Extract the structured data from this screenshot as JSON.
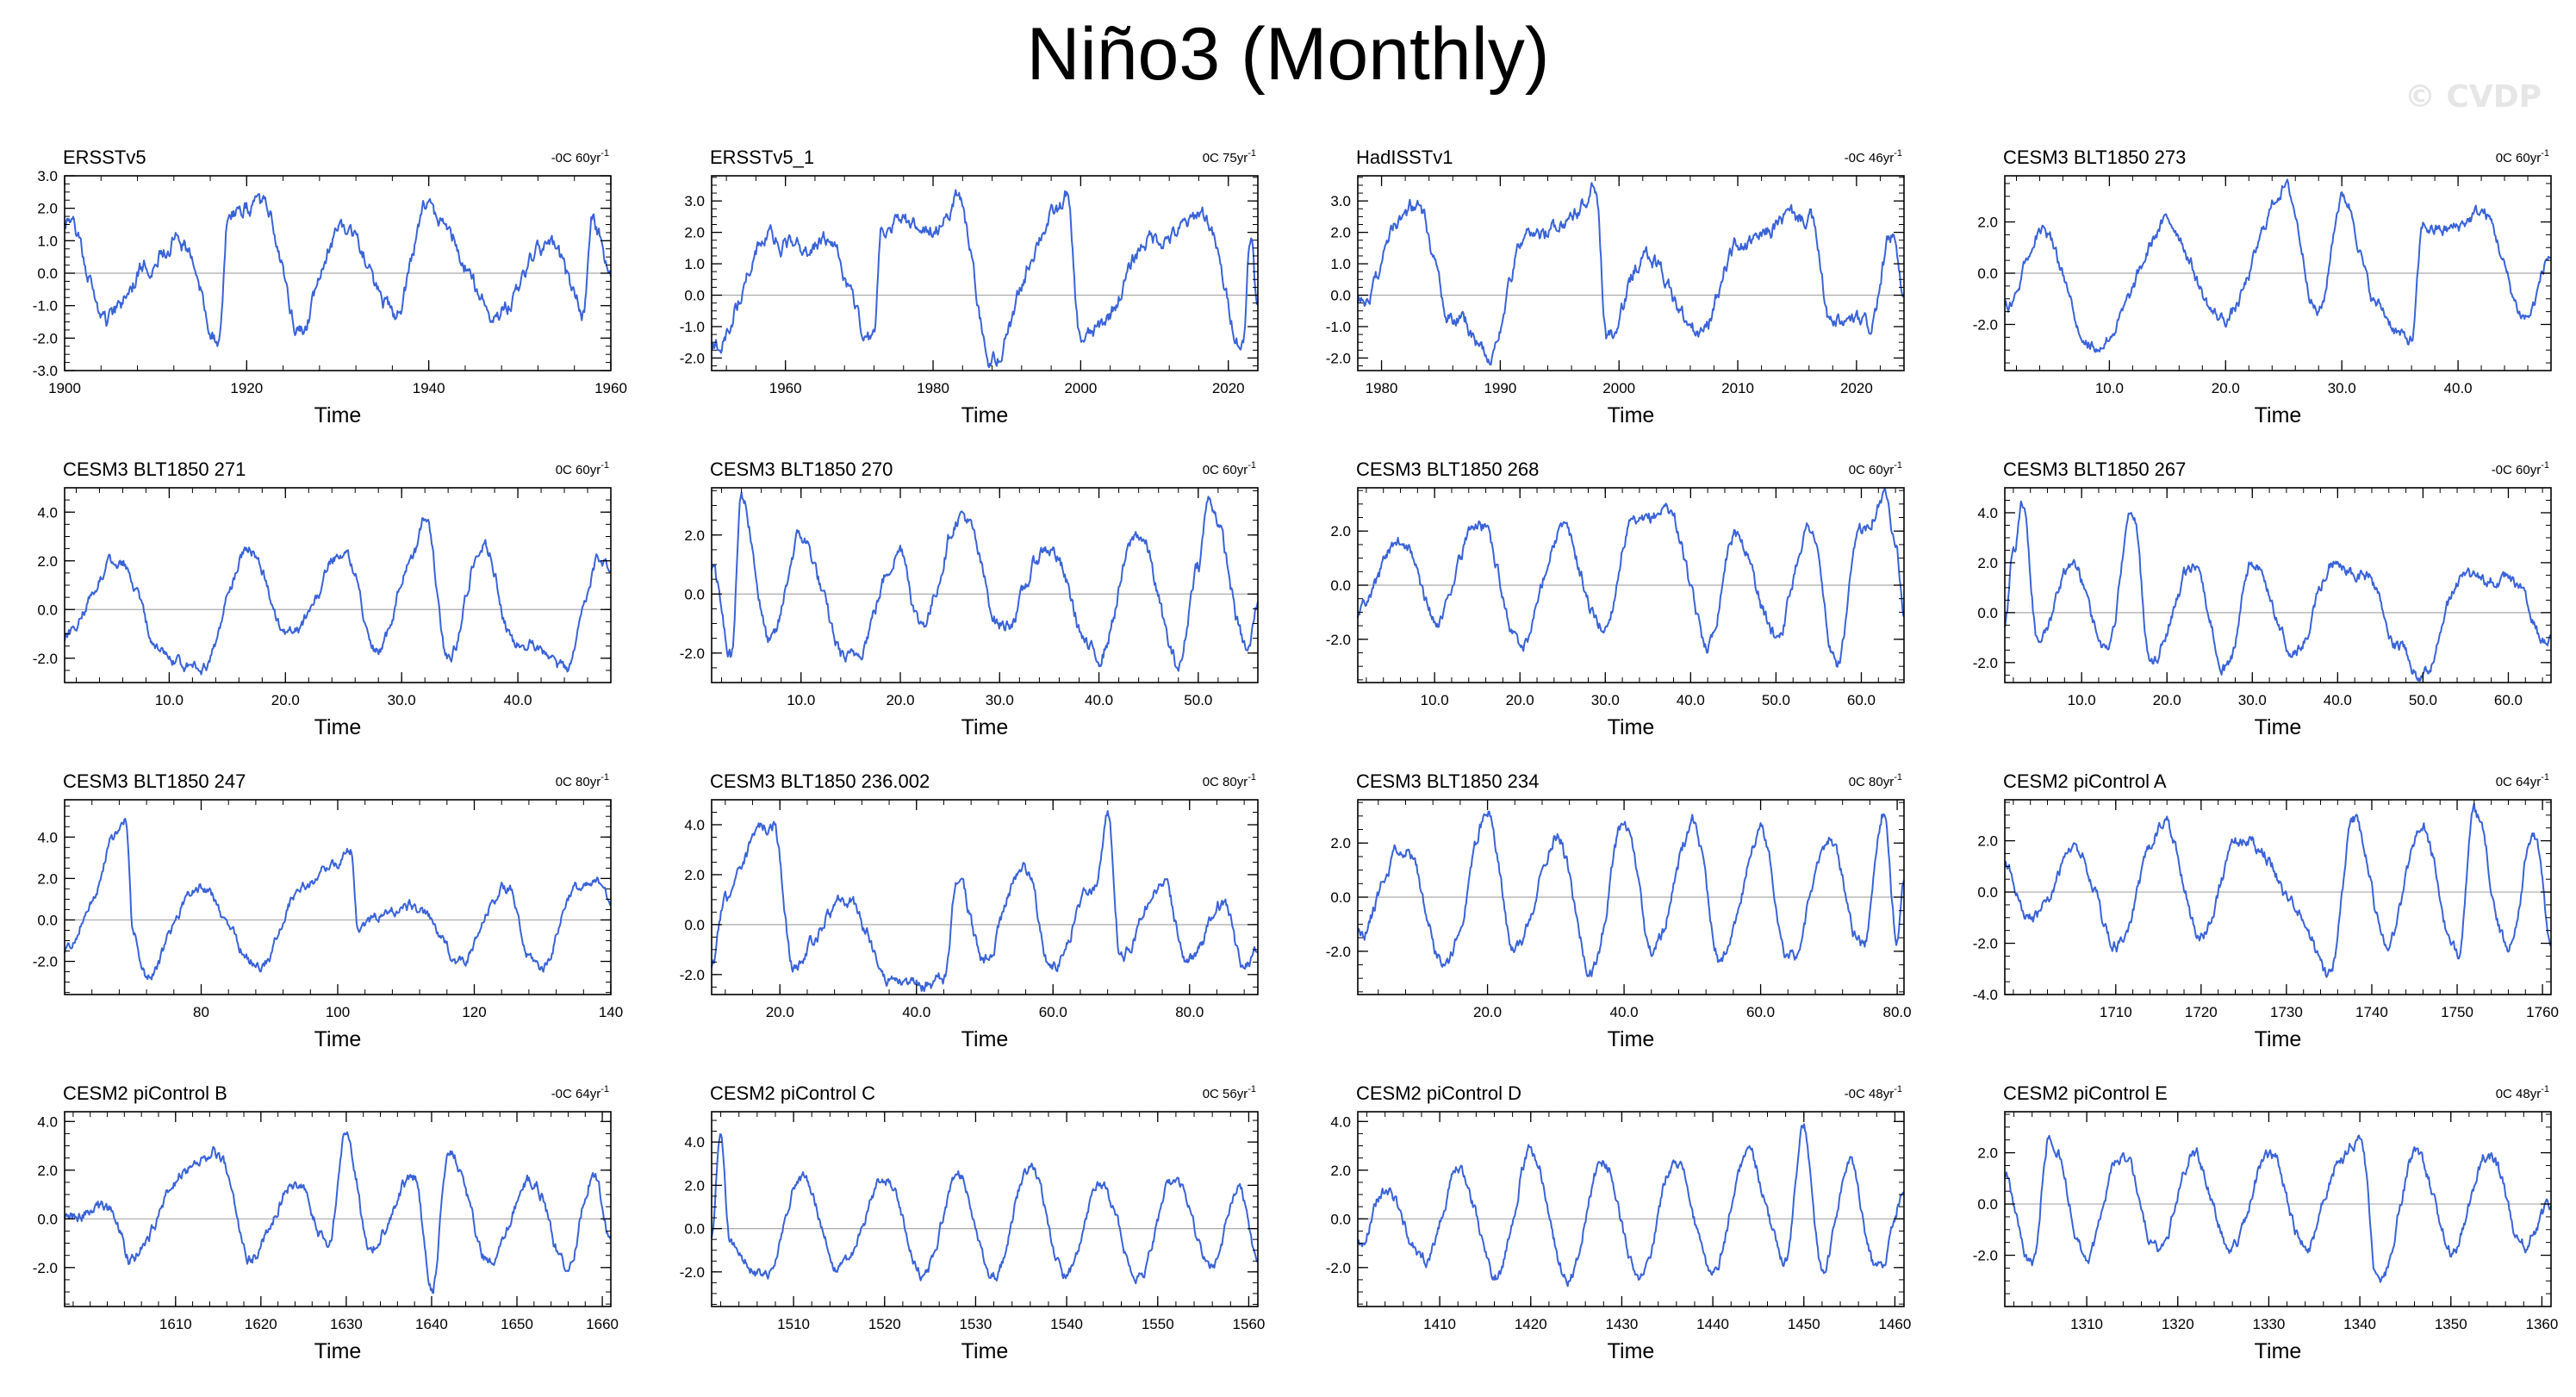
{
  "title": "Niño3 (Monthly)",
  "watermark": "© CVDP",
  "colors": {
    "series": "#3a63d8",
    "frame": "#000000",
    "zero": "#aaaaaa"
  },
  "chart_data": [
    {
      "type": "line",
      "title": "ERSSTv5",
      "note": "-0C 60yr",
      "note_sup": "-1",
      "xlabel": "Time",
      "xlim": [
        1900,
        1960
      ],
      "xticks": [
        1900,
        1920,
        1940,
        1960
      ],
      "ylim": [
        -3,
        3
      ],
      "yticks": [
        -3.0,
        -2.0,
        -1.0,
        0.0,
        1.0,
        2.0,
        3.0
      ],
      "ydec": 1,
      "seed": 1,
      "amp": 0.95,
      "key_x": [
        1900,
        1905,
        1912,
        1917,
        1918,
        1922,
        1926,
        1931,
        1936,
        1940,
        1941,
        1948,
        1953,
        1957,
        1958,
        1960
      ],
      "key_y": [
        1.4,
        -1.3,
        1.2,
        -1.9,
        2.1,
        1.8,
        -1.6,
        1.6,
        -1.4,
        2.2,
        1.4,
        -1.2,
        1.0,
        -1.3,
        1.8,
        0.3
      ]
    },
    {
      "type": "line",
      "title": "ERSSTv5_1",
      "note": "0C 75yr",
      "note_sup": "-1",
      "xlabel": "Time",
      "xlim": [
        1950,
        2024
      ],
      "xticks": [
        1960,
        1980,
        2000,
        2020
      ],
      "ylim": [
        -2.4,
        3.8
      ],
      "yticks": [
        -2.0,
        -1.0,
        0.0,
        1.0,
        2.0,
        3.0
      ],
      "ydec": 1,
      "seed": 2,
      "amp": 0.85,
      "key_x": [
        1950,
        1957,
        1965,
        1972,
        1973,
        1982,
        1983,
        1988,
        1997,
        1998,
        2000,
        2010,
        2015,
        2016,
        2022,
        2023,
        2024
      ],
      "key_y": [
        -1.8,
        1.6,
        1.7,
        -1.3,
        2.1,
        2.4,
        2.9,
        -1.9,
        2.8,
        3.3,
        -1.6,
        1.7,
        2.4,
        2.6,
        -1.3,
        2.2,
        -0.5
      ]
    },
    {
      "type": "line",
      "title": "HadISSTv1",
      "note": "-0C 46yr",
      "note_sup": "-1",
      "xlabel": "Time",
      "xlim": [
        1978,
        2024
      ],
      "xticks": [
        1980,
        1990,
        2000,
        2010,
        2020
      ],
      "ylim": [
        -2.4,
        3.8
      ],
      "yticks": [
        -2.0,
        -1.0,
        0.0,
        1.0,
        2.0,
        3.0
      ],
      "ydec": 1,
      "seed": 3,
      "amp": 0.5,
      "key_x": [
        1978,
        1982,
        1983,
        1986,
        1989,
        1992,
        1997,
        1998,
        1999,
        2002,
        2007,
        2010,
        2015,
        2016,
        2018,
        2021,
        2023,
        2024
      ],
      "key_y": [
        -0.2,
        2.4,
        2.8,
        -0.7,
        -1.8,
        1.6,
        2.8,
        3.3,
        -1.5,
        1.2,
        -1.2,
        1.6,
        2.4,
        2.6,
        -1.0,
        -1.0,
        1.9,
        -0.3
      ]
    },
    {
      "type": "line",
      "title": "CESM3 BLT1850 273",
      "note": "0C 60yr",
      "note_sup": "-1",
      "xlabel": "Time",
      "xlim": [
        1,
        48
      ],
      "xticks": [
        10,
        20,
        30,
        40
      ],
      "ylim": [
        -3.8,
        3.8
      ],
      "yticks": [
        -2.0,
        0.0,
        2.0
      ],
      "ydec": 1,
      "seed": 4,
      "amp": 0.85,
      "key_x": [
        1,
        4,
        9,
        15,
        20,
        25,
        28,
        30,
        33,
        36,
        37,
        42,
        46,
        48
      ],
      "key_y": [
        -1.2,
        1.5,
        -2.9,
        1.8,
        -1.9,
        3.3,
        -1.4,
        3.0,
        -1.2,
        -2.7,
        1.6,
        2.2,
        -1.6,
        0.5
      ]
    },
    {
      "type": "line",
      "title": "CESM3 BLT1850 271",
      "note": "0C 60yr",
      "note_sup": "-1",
      "xlabel": "Time",
      "xlim": [
        1,
        48
      ],
      "xticks": [
        10,
        20,
        30,
        40
      ],
      "ylim": [
        -3.0,
        5.0
      ],
      "yticks": [
        -2.0,
        0.0,
        2.0,
        4.0
      ],
      "ydec": 1,
      "seed": 5,
      "amp": 0.9,
      "key_x": [
        1,
        6,
        9,
        13,
        17,
        20,
        25,
        28,
        31,
        32,
        34,
        37,
        40,
        44,
        47,
        48
      ],
      "key_y": [
        -1.0,
        2.2,
        -1.8,
        -2.4,
        2.7,
        -1.2,
        2.3,
        -1.6,
        2.0,
        3.8,
        -2.0,
        2.7,
        -1.5,
        -2.4,
        1.8,
        1.5
      ]
    },
    {
      "type": "line",
      "title": "CESM3 BLT1850 270",
      "note": "0C 60yr",
      "note_sup": "-1",
      "xlabel": "Time",
      "xlim": [
        1,
        56
      ],
      "xticks": [
        10,
        20,
        30,
        40,
        50
      ],
      "ylim": [
        -3.0,
        3.6
      ],
      "yticks": [
        -2.0,
        0.0,
        2.0
      ],
      "ydec": 1,
      "seed": 6,
      "amp": 0.85,
      "key_x": [
        1,
        3,
        4,
        7,
        10,
        15,
        20,
        22,
        26,
        30,
        35,
        40,
        44,
        48,
        50,
        51,
        55,
        56
      ],
      "key_y": [
        0.8,
        -2.2,
        3.2,
        -1.6,
        1.8,
        -2.4,
        1.6,
        -1.2,
        2.8,
        -1.0,
        1.4,
        -2.2,
        2.2,
        -2.6,
        1.2,
        3.3,
        -2.0,
        -0.3
      ]
    },
    {
      "type": "line",
      "title": "CESM3 BLT1850 268",
      "note": "0C 60yr",
      "note_sup": "-1",
      "xlabel": "Time",
      "xlim": [
        1,
        65
      ],
      "xticks": [
        10,
        20,
        30,
        40,
        50,
        60
      ],
      "ylim": [
        -3.6,
        3.6
      ],
      "yticks": [
        -2.0,
        0.0,
        2.0
      ],
      "ydec": 1,
      "seed": 7,
      "amp": 0.9,
      "key_x": [
        1,
        6,
        10,
        15,
        20,
        25,
        30,
        33,
        37,
        42,
        45,
        50,
        54,
        57,
        60,
        63,
        64,
        65
      ],
      "key_y": [
        -1.2,
        1.9,
        -1.4,
        2.3,
        -2.0,
        1.9,
        -1.6,
        2.1,
        2.9,
        -2.0,
        1.8,
        -1.6,
        2.0,
        -2.8,
        1.9,
        3.3,
        2.0,
        -0.8
      ]
    },
    {
      "type": "line",
      "title": "CESM3 BLT1850 267",
      "note": "-0C 60yr",
      "note_sup": "-1",
      "xlabel": "Time",
      "xlim": [
        1,
        65
      ],
      "xticks": [
        10,
        20,
        30,
        40,
        50,
        60
      ],
      "ylim": [
        -2.8,
        5.0
      ],
      "yticks": [
        -2.0,
        0.0,
        2.0,
        4.0
      ],
      "ydec": 1,
      "seed": 8,
      "amp": 0.85,
      "key_x": [
        1,
        2,
        3,
        5,
        9,
        13,
        16,
        18,
        23,
        27,
        30,
        35,
        40,
        43,
        47,
        50,
        55,
        60,
        65
      ],
      "key_y": [
        -0.8,
        2.2,
        4.5,
        -1.2,
        1.8,
        -1.3,
        3.8,
        -1.8,
        1.6,
        -2.0,
        1.9,
        -1.4,
        2.1,
        1.6,
        -1.2,
        -2.4,
        1.5,
        1.2,
        -1.2
      ]
    },
    {
      "type": "line",
      "title": "CESM3 BLT1850 247",
      "note": "0C 80yr",
      "note_sup": "-1",
      "xlabel": "Time",
      "xlim": [
        60,
        140
      ],
      "xticks": [
        80,
        100,
        120,
        140
      ],
      "ylim": [
        -3.6,
        5.8
      ],
      "yticks": [
        -2.0,
        0.0,
        2.0,
        4.0
      ],
      "ydec": 1,
      "seed": 9,
      "amp": 0.95,
      "key_x": [
        60,
        64,
        67,
        69,
        70,
        72,
        80,
        88,
        95,
        100,
        102,
        103,
        110,
        118,
        125,
        128,
        130,
        135,
        139,
        140
      ],
      "key_y": [
        -1.5,
        1.2,
        3.6,
        4.8,
        -0.6,
        -2.4,
        1.6,
        -2.2,
        1.5,
        3.0,
        3.4,
        -0.4,
        0.8,
        -1.8,
        1.5,
        -1.6,
        -2.3,
        1.6,
        1.9,
        0.4
      ]
    },
    {
      "type": "line",
      "title": "CESM3 BLT1850 236.002",
      "note": "0C 80yr",
      "note_sup": "-1",
      "xlabel": "Time",
      "xlim": [
        10,
        90
      ],
      "xticks": [
        20,
        40,
        60,
        80
      ],
      "ylim": [
        -2.8,
        5.0
      ],
      "yticks": [
        -2.0,
        0.0,
        2.0,
        4.0
      ],
      "ydec": 1,
      "seed": 10,
      "amp": 0.9,
      "key_x": [
        10,
        12,
        18,
        19,
        22,
        30,
        36,
        44,
        46,
        50,
        56,
        60,
        66,
        68,
        70,
        76,
        80,
        85,
        88,
        90
      ],
      "key_y": [
        -1.6,
        1.2,
        3.8,
        4.2,
        -1.6,
        1.1,
        -2.2,
        -2.5,
        1.8,
        -1.3,
        2.4,
        -1.8,
        1.6,
        4.6,
        -1.5,
        1.8,
        -1.6,
        1.0,
        -1.8,
        -1.2
      ]
    },
    {
      "type": "line",
      "title": "CESM3 BLT1850 234",
      "note": "0C 80yr",
      "note_sup": "-1",
      "xlabel": "Time",
      "xlim": [
        1,
        81
      ],
      "xticks": [
        20,
        40,
        60,
        80
      ],
      "ylim": [
        -3.6,
        3.6
      ],
      "yticks": [
        -2.0,
        0.0,
        2.0
      ],
      "ydec": 1,
      "seed": 11,
      "amp": 1.1,
      "key_x": [
        1,
        8,
        14,
        20,
        24,
        30,
        35,
        40,
        44,
        50,
        54,
        60,
        64,
        70,
        75,
        78,
        80,
        81
      ],
      "key_y": [
        -1.2,
        1.8,
        -2.6,
        3.2,
        -2.2,
        2.4,
        -2.8,
        2.8,
        -2.0,
        2.6,
        -2.3,
        2.3,
        -2.2,
        1.9,
        -1.7,
        3.1,
        -1.6,
        0.3
      ]
    },
    {
      "type": "line",
      "title": "CESM2 piControl A",
      "note": "0C 64yr",
      "note_sup": "-1",
      "xlabel": "Time",
      "xlim": [
        1697,
        1761
      ],
      "xticks": [
        1710,
        1720,
        1730,
        1740,
        1750,
        1760
      ],
      "ylim": [
        -4.0,
        3.6
      ],
      "yticks": [
        -4.0,
        -2.0,
        0.0,
        2.0
      ],
      "ydec": 1,
      "seed": 12,
      "amp": 1.05,
      "key_x": [
        1697,
        1700,
        1705,
        1710,
        1716,
        1720,
        1725,
        1732,
        1735,
        1738,
        1742,
        1746,
        1750,
        1752,
        1756,
        1759,
        1761
      ],
      "key_y": [
        1.2,
        -1.2,
        1.6,
        -1.8,
        2.6,
        -1.6,
        2.3,
        -1.0,
        -3.4,
        2.6,
        -1.9,
        2.6,
        -2.6,
        2.8,
        -2.0,
        2.0,
        -1.8
      ]
    },
    {
      "type": "line",
      "title": "CESM2 piControl B",
      "note": "-0C 64yr",
      "note_sup": "-1",
      "xlabel": "Time",
      "xlim": [
        1597,
        1661
      ],
      "xticks": [
        1610,
        1620,
        1630,
        1640,
        1650,
        1660
      ],
      "ylim": [
        -3.6,
        4.4
      ],
      "yticks": [
        -2.0,
        0.0,
        2.0,
        4.0
      ],
      "ydec": 1,
      "seed": 13,
      "amp": 1.0,
      "key_x": [
        1597,
        1602,
        1605,
        1611,
        1615,
        1619,
        1624,
        1628,
        1630,
        1633,
        1638,
        1640,
        1642,
        1647,
        1652,
        1656,
        1659,
        1661
      ],
      "key_y": [
        -0.2,
        0.6,
        -1.8,
        2.0,
        2.6,
        -1.6,
        1.6,
        -1.2,
        3.6,
        -1.2,
        1.8,
        -2.8,
        2.6,
        -1.7,
        1.6,
        -2.0,
        1.8,
        -0.6
      ]
    },
    {
      "type": "line",
      "title": "CESM2 piControl C",
      "note": "0C 56yr",
      "note_sup": "-1",
      "xlabel": "Time",
      "xlim": [
        1501,
        1561
      ],
      "xticks": [
        1510,
        1520,
        1530,
        1540,
        1550,
        1560
      ],
      "ylim": [
        -3.6,
        5.4
      ],
      "yticks": [
        -2.0,
        0.0,
        2.0,
        4.0
      ],
      "ydec": 1,
      "seed": 14,
      "amp": 1.1,
      "key_x": [
        1501,
        1502,
        1503,
        1507,
        1511,
        1515,
        1520,
        1524,
        1528,
        1532,
        1536,
        1540,
        1544,
        1548,
        1552,
        1556,
        1559,
        1561
      ],
      "key_y": [
        -0.6,
        4.4,
        -0.5,
        -2.2,
        2.6,
        -2.1,
        2.4,
        -2.0,
        2.2,
        -1.9,
        2.6,
        -2.0,
        1.9,
        -2.2,
        2.4,
        -2.0,
        2.0,
        -1.2
      ]
    },
    {
      "type": "line",
      "title": "CESM2 piControl D",
      "note": "-0C 48yr",
      "note_sup": "-1",
      "xlabel": "Time",
      "xlim": [
        1401,
        1461
      ],
      "xticks": [
        1410,
        1420,
        1430,
        1440,
        1450,
        1460
      ],
      "ylim": [
        -3.6,
        4.4
      ],
      "yticks": [
        -2.0,
        0.0,
        2.0,
        4.0
      ],
      "ydec": 1,
      "seed": 15,
      "amp": 1.05,
      "key_x": [
        1401,
        1404,
        1408,
        1412,
        1416,
        1420,
        1424,
        1428,
        1432,
        1436,
        1440,
        1444,
        1448,
        1450,
        1452,
        1455,
        1458,
        1461
      ],
      "key_y": [
        -1.2,
        1.4,
        -1.8,
        2.0,
        -2.2,
        2.6,
        -2.2,
        2.2,
        -2.4,
        2.4,
        -2.2,
        2.8,
        -1.8,
        3.6,
        -2.0,
        2.0,
        -2.0,
        1.0
      ]
    },
    {
      "type": "line",
      "title": "CESM2 piControl E",
      "note": "0C 48yr",
      "note_sup": "-1",
      "xlabel": "Time",
      "xlim": [
        1301,
        1361
      ],
      "xticks": [
        1310,
        1320,
        1330,
        1340,
        1350,
        1360
      ],
      "ylim": [
        -4.0,
        3.6
      ],
      "yticks": [
        -2.0,
        0.0,
        2.0
      ],
      "ydec": 1,
      "seed": 16,
      "amp": 1.0,
      "key_x": [
        1301,
        1304,
        1306,
        1310,
        1314,
        1318,
        1322,
        1326,
        1330,
        1334,
        1338,
        1340,
        1342,
        1346,
        1350,
        1354,
        1358,
        1361
      ],
      "key_y": [
        1.2,
        -2.2,
        2.6,
        -1.8,
        1.8,
        -1.6,
        2.0,
        -2.0,
        2.2,
        -1.8,
        2.0,
        2.6,
        -3.2,
        1.8,
        -1.6,
        1.8,
        -1.4,
        -0.3
      ]
    }
  ]
}
